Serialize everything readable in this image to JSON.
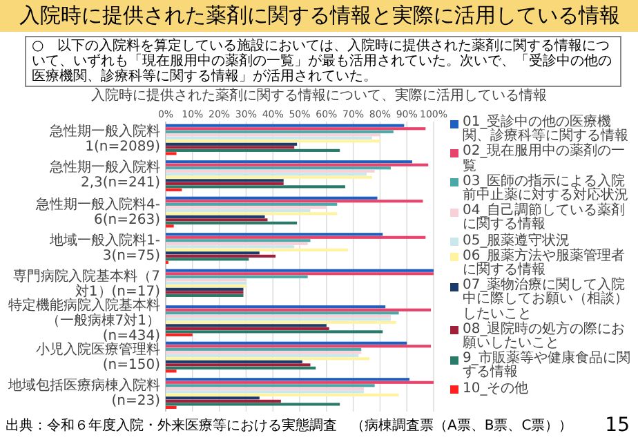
{
  "chart_data": {
    "type": "bar",
    "orientation": "horizontal",
    "title": "入院時に提供された薬剤に関する情報と実際に活用している情報",
    "subtitle": "入院時に提供された薬剤に関する情報について、実際に活用している情報",
    "annotations": [
      "○　以下の入院料を算定している施設においては、入院時に提供された薬剤に関する情報について、いずれも「現在服用中の薬剤の一覧」が最も活用されていた。次いで、「受診中の他の医療機関、診療科等に関する情報」が活用されていた。",
      "出典：令和６年度入院・外来医療等における実態調査　（病棟調査票（A票、B票、C票））",
      "15"
    ],
    "categories": [
      "急性期一般入院料1(n=2089)",
      "急性期一般入院料2,3(n=241)",
      "急性期一般入院料4-6(n=263)",
      "地域一般入院料1-3(n=75)",
      "専門病院入院基本料（7対1）(n=17)",
      "特定機能病院入院基本料（一般病棟7対1）(n=434)",
      "小児入院医療管理料(n=150)",
      "地域包括医療病棟入院料(n=23)"
    ],
    "series": [
      {
        "name": "01_受診中の他の医療機関、診療科等に関する情報",
        "color": "#1f5fbf",
        "values": [
          89,
          92,
          79,
          81,
          100,
          82,
          90,
          91
        ]
      },
      {
        "name": "02_現在服用中の薬剤の一覧",
        "color": "#e8436a",
        "values": [
          97,
          98,
          96,
          97,
          100,
          99,
          99,
          100
        ]
      },
      {
        "name": "03_医師の指示による入院前中止薬に対する対応状況",
        "color": "#4aa8a8",
        "values": [
          85,
          84,
          64,
          54,
          53,
          87,
          73,
          78
        ]
      },
      {
        "name": "04_自己調節している薬剤に関する情報",
        "color": "#f8d0d8",
        "values": [
          80,
          78,
          60,
          53,
          30,
          84,
          73,
          74
        ]
      },
      {
        "name": "05_服薬遵守状況",
        "color": "#c8e8ec",
        "values": [
          77,
          75,
          54,
          48,
          30,
          84,
          72,
          74
        ]
      },
      {
        "name": "06_服薬方法や服薬管理者に関する情報",
        "color": "#fff3a0",
        "values": [
          80,
          77,
          64,
          68,
          30,
          86,
          76,
          87
        ]
      },
      {
        "name": "07_薬物治療に関して入院中に際してお願い（相談）したいこと",
        "color": "#1a3a6a",
        "values": [
          49,
          44,
          37,
          35,
          29,
          60,
          51,
          35
        ]
      },
      {
        "name": "08_退院時の処方の際にお願いしたいこと",
        "color": "#a0203a",
        "values": [
          48,
          44,
          38,
          41,
          29,
          61,
          54,
          43
        ]
      },
      {
        "name": "9_市販薬等や健康食品に関する情報",
        "color": "#2a7a6a",
        "values": [
          65,
          67,
          49,
          31,
          29,
          81,
          56,
          65
        ]
      },
      {
        "name": "10_その他",
        "color": "#ff2020",
        "values": [
          4,
          6,
          3,
          1,
          0,
          10,
          4,
          4
        ]
      }
    ],
    "xlim": [
      0,
      100
    ],
    "xticks": [
      {
        "value": 0,
        "label": "0%"
      },
      {
        "value": 10,
        "label": "10%"
      },
      {
        "value": 20,
        "label": "20%"
      },
      {
        "value": 30,
        "label": "30%"
      },
      {
        "value": 40,
        "label": "40%"
      },
      {
        "value": 50,
        "label": "50%"
      },
      {
        "value": 60,
        "label": "60%"
      },
      {
        "value": 70,
        "label": "70%"
      },
      {
        "value": 80,
        "label": "80%"
      },
      {
        "value": 90,
        "label": "90%"
      },
      {
        "value": 100,
        "label": "100%"
      }
    ],
    "grid": "x",
    "legend": "right"
  }
}
